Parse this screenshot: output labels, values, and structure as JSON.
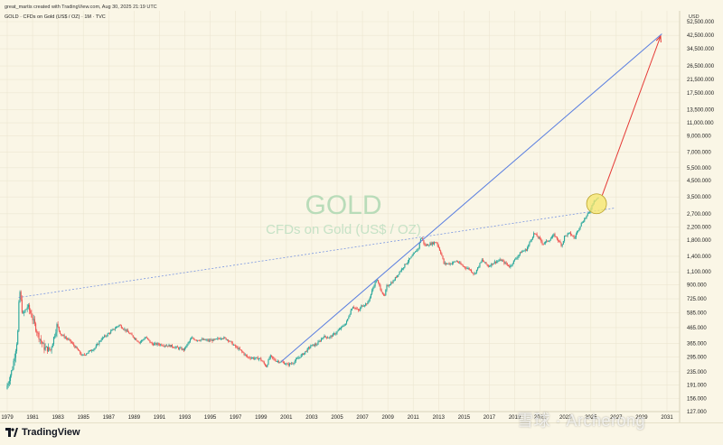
{
  "header": {
    "creator": "great_martis created with TradingView.com, Aug 30, 2025 21:19 UTC",
    "symbol_line": "GOLD · CFDs on Gold (US$ / OZ) · 1M · TVC"
  },
  "watermark": {
    "symbol": "GOLD",
    "description": "CFDs on Gold (US$ / OZ)"
  },
  "footer": {
    "brand": "TradingView",
    "overlay_text": "雪球 · Archerong"
  },
  "colors": {
    "background": "#faf6e6",
    "up": "#26a69a",
    "down": "#ef5350",
    "trendline": "#5b7fe0",
    "arrow": "#e53935",
    "highlight": "#f5e66a"
  },
  "chart_data": {
    "type": "candlestick",
    "title": "",
    "scale": "log",
    "currency_label": "USD",
    "x_ticks": [
      "1979",
      "1981",
      "1983",
      "1985",
      "1987",
      "1989",
      "1991",
      "1993",
      "1995",
      "1997",
      "1999",
      "2001",
      "2003",
      "2005",
      "2007",
      "2009",
      "2011",
      "2013",
      "2015",
      "2017",
      "2019",
      "2021",
      "2023",
      "2025",
      "2027",
      "2029",
      "2031"
    ],
    "y_ticks": [
      "52,500.000",
      "42,500.000",
      "34,500.000",
      "26,500.000",
      "21,500.000",
      "17,500.000",
      "13,500.000",
      "11,000.000",
      "9,000.000",
      "7,000.000",
      "5,500.000",
      "4,500.000",
      "3,500.000",
      "2,700.000",
      "2,200.000",
      "1,800.000",
      "1,400.000",
      "1,100.000",
      "900.000",
      "725.000",
      "585.000",
      "465.000",
      "365.000",
      "295.000",
      "235.000",
      "191.000",
      "156.000",
      "127.000"
    ],
    "ylim": [
      120,
      60000
    ],
    "xlim": [
      1978.7,
      2032.2
    ],
    "price_path": [
      [
        1979.0,
        180
      ],
      [
        1979.5,
        250
      ],
      [
        1979.9,
        400
      ],
      [
        1980.05,
        850
      ],
      [
        1980.3,
        560
      ],
      [
        1980.7,
        650
      ],
      [
        1981.0,
        560
      ],
      [
        1981.5,
        420
      ],
      [
        1982.0,
        340
      ],
      [
        1982.5,
        330
      ],
      [
        1983.0,
        480
      ],
      [
        1983.3,
        420
      ],
      [
        1984.0,
        380
      ],
      [
        1984.5,
        340
      ],
      [
        1985.0,
        300
      ],
      [
        1985.5,
        320
      ],
      [
        1986.0,
        340
      ],
      [
        1986.5,
        390
      ],
      [
        1987.0,
        420
      ],
      [
        1987.9,
        485
      ],
      [
        1988.5,
        440
      ],
      [
        1989.0,
        405
      ],
      [
        1989.5,
        370
      ],
      [
        1990.0,
        400
      ],
      [
        1990.5,
        360
      ],
      [
        1991.0,
        360
      ],
      [
        1991.5,
        355
      ],
      [
        1992.0,
        350
      ],
      [
        1992.5,
        340
      ],
      [
        1993.0,
        330
      ],
      [
        1993.6,
        395
      ],
      [
        1994.0,
        385
      ],
      [
        1994.5,
        385
      ],
      [
        1995.0,
        380
      ],
      [
        1995.5,
        385
      ],
      [
        1996.0,
        400
      ],
      [
        1996.5,
        385
      ],
      [
        1997.0,
        350
      ],
      [
        1997.5,
        325
      ],
      [
        1998.0,
        295
      ],
      [
        1998.5,
        290
      ],
      [
        1999.0,
        288
      ],
      [
        1999.5,
        255
      ],
      [
        1999.8,
        300
      ],
      [
        2000.2,
        280
      ],
      [
        2000.8,
        272
      ],
      [
        2001.2,
        262
      ],
      [
        2001.6,
        270
      ],
      [
        2002.0,
        290
      ],
      [
        2002.5,
        315
      ],
      [
        2003.0,
        350
      ],
      [
        2003.5,
        360
      ],
      [
        2004.0,
        405
      ],
      [
        2004.5,
        400
      ],
      [
        2005.0,
        430
      ],
      [
        2005.8,
        500
      ],
      [
        2006.3,
        650
      ],
      [
        2006.8,
        600
      ],
      [
        2007.0,
        650
      ],
      [
        2007.5,
        680
      ],
      [
        2008.0,
        900
      ],
      [
        2008.2,
        980
      ],
      [
        2008.8,
        740
      ],
      [
        2009.0,
        880
      ],
      [
        2009.5,
        950
      ],
      [
        2010.0,
        1100
      ],
      [
        2010.5,
        1250
      ],
      [
        2011.0,
        1400
      ],
      [
        2011.5,
        1600
      ],
      [
        2011.7,
        1900
      ],
      [
        2012.0,
        1650
      ],
      [
        2012.5,
        1700
      ],
      [
        2012.9,
        1750
      ],
      [
        2013.3,
        1450
      ],
      [
        2013.5,
        1250
      ],
      [
        2014.0,
        1250
      ],
      [
        2014.5,
        1300
      ],
      [
        2015.0,
        1200
      ],
      [
        2015.5,
        1150
      ],
      [
        2015.9,
        1060
      ],
      [
        2016.5,
        1320
      ],
      [
        2017.0,
        1200
      ],
      [
        2017.5,
        1280
      ],
      [
        2018.0,
        1320
      ],
      [
        2018.7,
        1190
      ],
      [
        2019.0,
        1300
      ],
      [
        2019.6,
        1500
      ],
      [
        2020.0,
        1550
      ],
      [
        2020.6,
        2000
      ],
      [
        2021.0,
        1850
      ],
      [
        2021.3,
        1700
      ],
      [
        2021.8,
        1800
      ],
      [
        2022.2,
        1950
      ],
      [
        2022.8,
        1650
      ],
      [
        2023.0,
        1900
      ],
      [
        2023.4,
        2000
      ],
      [
        2023.8,
        1850
      ],
      [
        2024.0,
        2050
      ],
      [
        2024.3,
        2300
      ],
      [
        2024.8,
        2650
      ],
      [
        2025.0,
        2800
      ],
      [
        2025.3,
        3300
      ],
      [
        2025.66,
        3450
      ]
    ],
    "annotations": {
      "support_line": [
        [
          1979.9,
          740
        ],
        [
          2026.9,
          2950
        ]
      ],
      "trend_line": [
        [
          2000.6,
          275
        ],
        [
          2030.6,
          43500
        ]
      ],
      "forecast_arrow": [
        [
          2025.9,
          3600
        ],
        [
          2030.5,
          42000
        ]
      ],
      "highlight_circle_center": [
        2025.45,
        3150
      ]
    }
  }
}
